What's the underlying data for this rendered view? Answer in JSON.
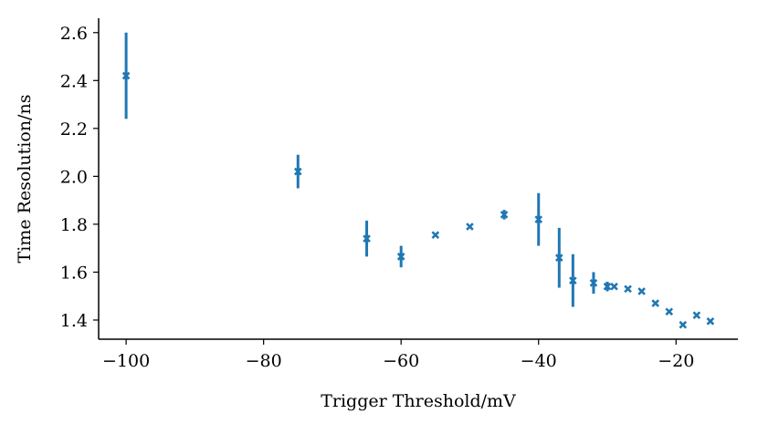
{
  "chart_data": {
    "type": "scatter",
    "title": "",
    "xlabel": "Trigger Threshold/mV",
    "ylabel": "Time Resolution/ns",
    "xlim": [
      -104,
      -11
    ],
    "ylim": [
      1.32,
      2.66
    ],
    "x_ticks": [
      -100,
      -80,
      -60,
      -40,
      -20
    ],
    "x_tick_labels": [
      "−100",
      "−80",
      "−60",
      "−40",
      "−20"
    ],
    "y_ticks": [
      1.4,
      1.6,
      1.8,
      2.0,
      2.2,
      2.4,
      2.6
    ],
    "y_tick_labels": [
      "1.4",
      "1.6",
      "1.8",
      "2.0",
      "2.2",
      "2.4",
      "2.6"
    ],
    "grid": false,
    "marker": "x",
    "color": "#1f77b4",
    "points": [
      {
        "x": -100,
        "y": 2.42,
        "yerr": 0.18
      },
      {
        "x": -75,
        "y": 2.02,
        "yerr": 0.07
      },
      {
        "x": -65,
        "y": 1.74,
        "yerr": 0.075
      },
      {
        "x": -60,
        "y": 1.665,
        "yerr": 0.045
      },
      {
        "x": -55,
        "y": 1.755,
        "yerr": 0
      },
      {
        "x": -50,
        "y": 1.79,
        "yerr": 0
      },
      {
        "x": -45,
        "y": 1.84,
        "yerr": 0.02
      },
      {
        "x": -40,
        "y": 1.82,
        "yerr": 0.11
      },
      {
        "x": -37,
        "y": 1.66,
        "yerr": 0.125
      },
      {
        "x": -35,
        "y": 1.565,
        "yerr": 0.11
      },
      {
        "x": -32,
        "y": 1.555,
        "yerr": 0.045
      },
      {
        "x": -30,
        "y": 1.54,
        "yerr": 0.02
      },
      {
        "x": -29,
        "y": 1.54,
        "yerr": 0
      },
      {
        "x": -27,
        "y": 1.53,
        "yerr": 0
      },
      {
        "x": -25,
        "y": 1.52,
        "yerr": 0
      },
      {
        "x": -23,
        "y": 1.47,
        "yerr": 0
      },
      {
        "x": -21,
        "y": 1.435,
        "yerr": 0
      },
      {
        "x": -19,
        "y": 1.38,
        "yerr": 0
      },
      {
        "x": -17,
        "y": 1.42,
        "yerr": 0
      },
      {
        "x": -15,
        "y": 1.395,
        "yerr": 0
      }
    ]
  }
}
